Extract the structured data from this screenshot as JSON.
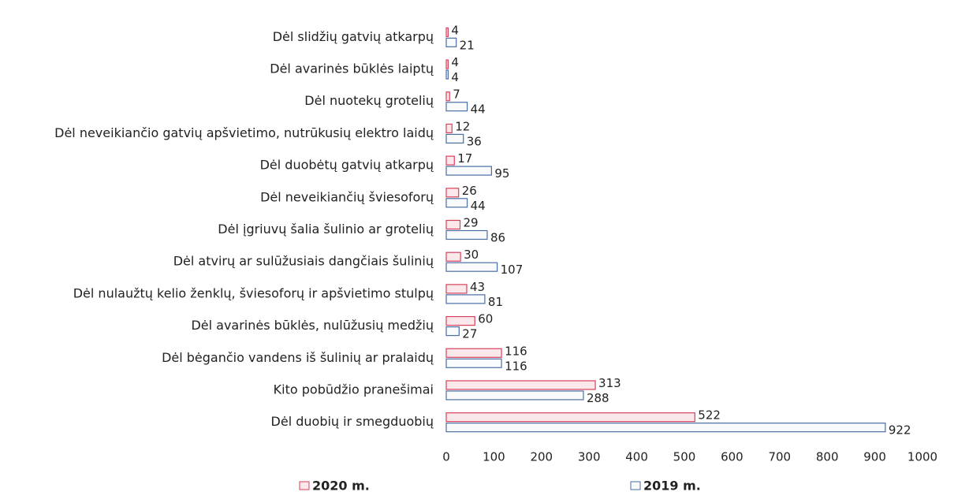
{
  "chart_data": {
    "type": "hbar",
    "categories": [
      "Dėl slidžių gatvių atkarpų",
      "Dėl avarinės būklės laiptų",
      "Dėl nuotekų grotelių",
      "Dėl neveikiančio gatvių apšvietimo, nutrūkusių elektro laidų",
      "Dėl duobėtų gatvių atkarpų",
      "Dėl neveikiančių šviesoforų",
      "Dėl įgriuvų šalia šulinio ar grotelių",
      "Dėl atvirų ar sulūžusiais dangčiais šulinių",
      "Dėl nulaužtų kelio ženklų, šviesoforų ir apšvietimo stulpų",
      "Dėl avarinės būklės, nulūžusių medžių",
      "Dėl bėgančio vandens iš šulinių ar pralaidų",
      "Kito pobūdžio pranešimai",
      "Dėl duobių ir smegduobių"
    ],
    "series": [
      {
        "name": "2020 m.",
        "color": "#d9405a",
        "values": [
          4,
          4,
          7,
          12,
          17,
          26,
          29,
          30,
          43,
          60,
          116,
          313,
          522
        ]
      },
      {
        "name": "2019 m.",
        "color": "#4a6fa5",
        "values": [
          21,
          4,
          44,
          36,
          95,
          44,
          86,
          107,
          81,
          27,
          116,
          288,
          922
        ]
      }
    ],
    "xlim": [
      0,
      1000
    ],
    "xticks": [
      0,
      100,
      200,
      300,
      400,
      500,
      600,
      700,
      800,
      900,
      1000
    ],
    "legend": "bottom"
  }
}
